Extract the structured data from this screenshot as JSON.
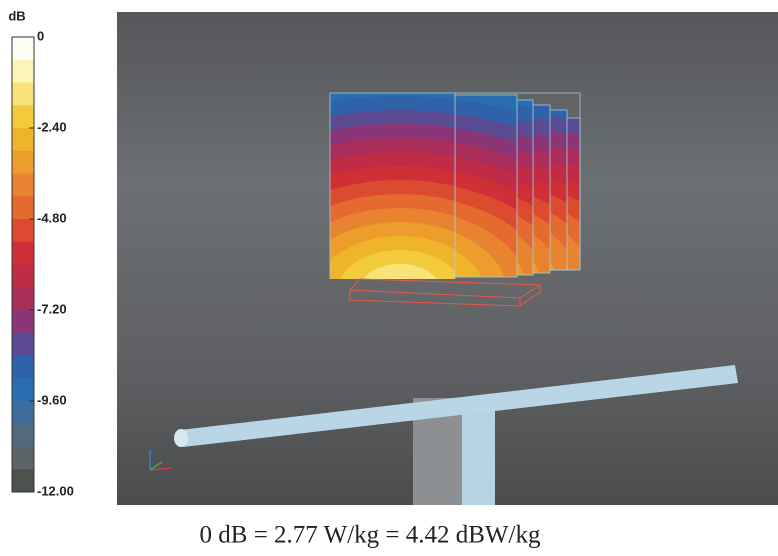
{
  "colorbar": {
    "unit": "dB",
    "range": [
      0,
      -12
    ],
    "ticks": [
      0,
      {
        "value": -2.4,
        "label": "-2.40"
      },
      {
        "value": -4.8,
        "label": "-4.80"
      },
      {
        "value": -7.2,
        "label": "-7.20"
      },
      {
        "value": -9.6,
        "label": "-9.60"
      },
      {
        "value": -12,
        "label": "-12.00"
      }
    ],
    "colors": [
      "#fdfdf4",
      "#fbf3b8",
      "#f8e27a",
      "#f3cc3e",
      "#eeb52a",
      "#ec9d2c",
      "#e8842f",
      "#e46a2f",
      "#dc4a30",
      "#cf3037",
      "#c02b45",
      "#aa2d5a",
      "#8a3575",
      "#5a4b93",
      "#2f62a8",
      "#2a6eb0",
      "#3d6d9c",
      "#52697f",
      "#5b6467",
      "#4d524f"
    ]
  },
  "caption": "0 dB = 2.77 W/kg = 4.42 dBW/kg"
}
